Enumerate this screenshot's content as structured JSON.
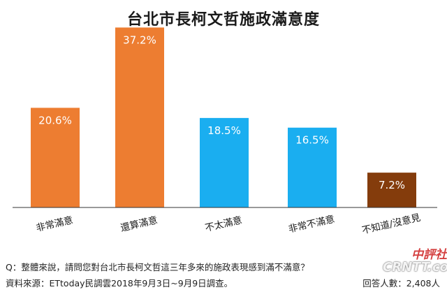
{
  "chart_data": {
    "type": "bar",
    "title": "台北市長柯文哲施政滿意度",
    "categories": [
      "非常滿意",
      "還算滿意",
      "不太滿意",
      "非常不滿意",
      "不知道/沒意見"
    ],
    "values": [
      20.6,
      37.2,
      18.5,
      16.5,
      7.2
    ],
    "value_labels": [
      "20.6%",
      "37.2%",
      "18.5%",
      "16.5%",
      "7.2%"
    ],
    "bar_colors": [
      "#ED7D31",
      "#ED7D31",
      "#1AAEF0",
      "#1AAEF0",
      "#843C0C"
    ],
    "ylim": [
      0,
      40
    ],
    "grid": false,
    "legend": "none"
  },
  "footer": {
    "question": "Q：整體來說，請問您對台北市長柯文哲這三年多來的施政表現感到滿不滿意？",
    "source": "資料來源：ETtoday民調雲2018年9月3日~9月9日調查。",
    "respondents": "回答人數：2,408人"
  },
  "watermark": {
    "top": "中評社",
    "bottom": "CRNTT.com"
  }
}
